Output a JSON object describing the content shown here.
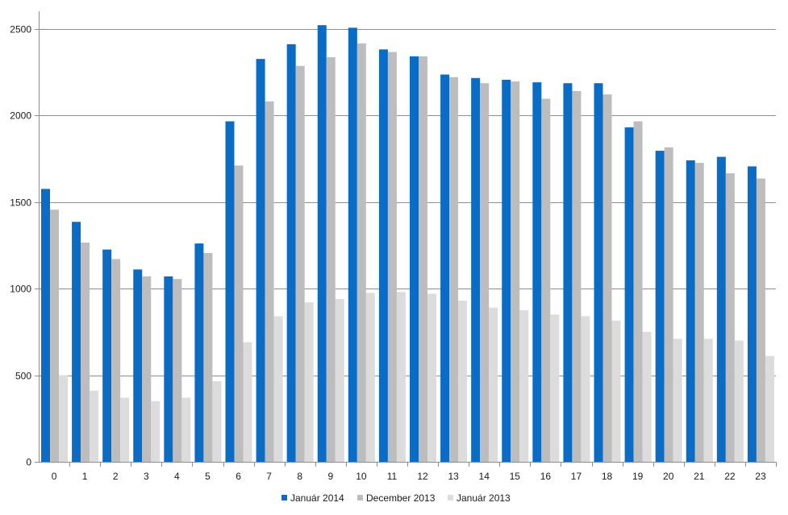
{
  "chart_data": {
    "type": "bar",
    "categories": [
      "0",
      "1",
      "2",
      "3",
      "4",
      "5",
      "6",
      "7",
      "8",
      "9",
      "10",
      "11",
      "12",
      "13",
      "14",
      "15",
      "16",
      "17",
      "18",
      "19",
      "20",
      "21",
      "22",
      "23"
    ],
    "series": [
      {
        "name": "Január 2014",
        "color": "#0a6cc4",
        "values": [
          1575,
          1385,
          1225,
          1110,
          1070,
          1260,
          1965,
          2325,
          2410,
          2520,
          2505,
          2380,
          2340,
          2235,
          2215,
          2205,
          2190,
          2185,
          2185,
          1930,
          1795,
          1740,
          1760,
          1705
        ]
      },
      {
        "name": "December 2013",
        "color": "#bdbdbd",
        "values": [
          1455,
          1265,
          1170,
          1070,
          1055,
          1205,
          1710,
          2080,
          2285,
          2335,
          2415,
          2365,
          2340,
          2220,
          2185,
          2195,
          2095,
          2140,
          2120,
          1965,
          1815,
          1725,
          1665,
          1635
        ]
      },
      {
        "name": "Január 2013",
        "color": "#dcdcdc",
        "values": [
          500,
          410,
          370,
          350,
          370,
          465,
          690,
          840,
          920,
          940,
          975,
          980,
          970,
          930,
          890,
          875,
          850,
          840,
          815,
          750,
          710,
          710,
          700,
          610
        ]
      }
    ],
    "yticks": [
      "0",
      "500",
      "1000",
      "1500",
      "2000",
      "2500"
    ],
    "ylim": [
      0,
      2600
    ],
    "grid": true,
    "legend_position": "bottom"
  }
}
